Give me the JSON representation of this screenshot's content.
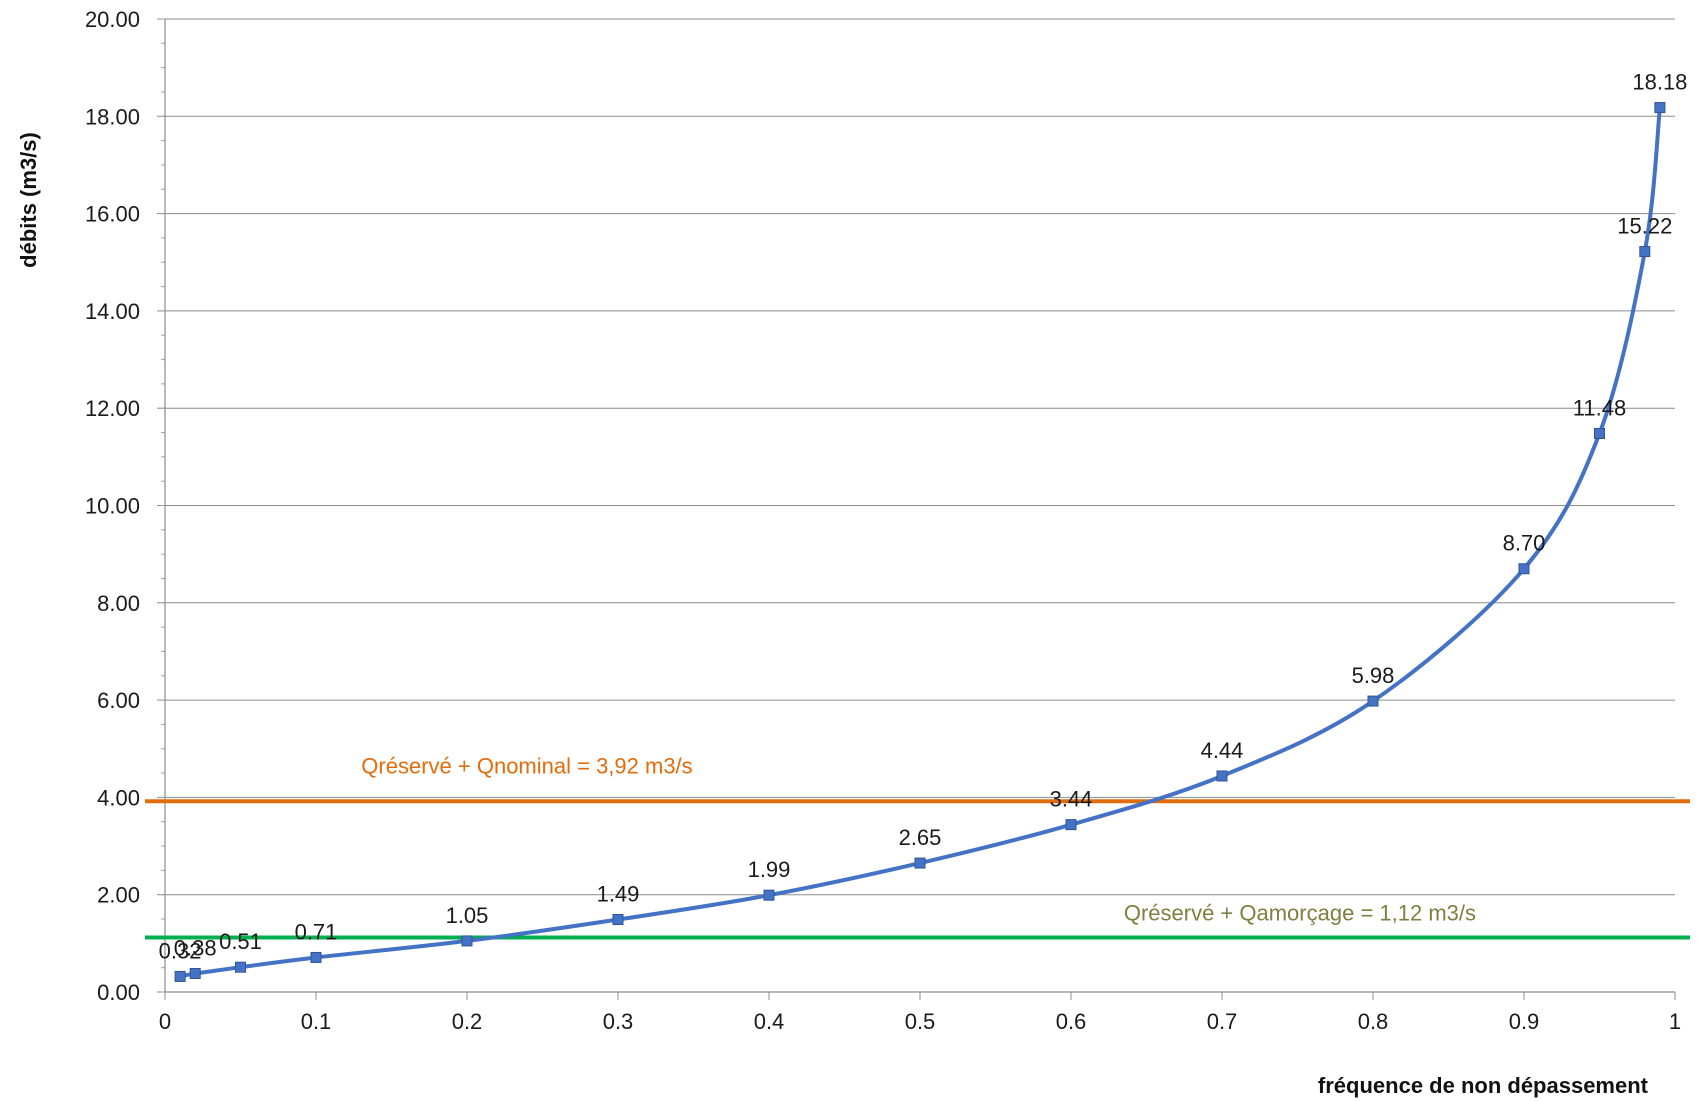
{
  "chart_data": {
    "type": "line",
    "xlabel": "fréquence de non dépassement",
    "ylabel": "débits (m3/s)",
    "xlim": [
      0,
      1
    ],
    "ylim": [
      0,
      20
    ],
    "x_ticks": [
      "0",
      "0.1",
      "0.2",
      "0.3",
      "0.4",
      "0.5",
      "0.6",
      "0.7",
      "0.8",
      "0.9",
      "1"
    ],
    "y_ticks": [
      "0.00",
      "2.00",
      "4.00",
      "6.00",
      "8.00",
      "10.00",
      "12.00",
      "14.00",
      "16.00",
      "18.00",
      "20.00"
    ],
    "grid": "horizontal",
    "series": [
      {
        "color": "#4472c4",
        "x": [
          0.01,
          0.02,
          0.05,
          0.1,
          0.2,
          0.3,
          0.4,
          0.5,
          0.6,
          0.7,
          0.8,
          0.9,
          0.95,
          0.98,
          0.99
        ],
        "y": [
          0.32,
          0.38,
          0.51,
          0.71,
          1.05,
          1.49,
          1.99,
          2.65,
          3.44,
          4.44,
          5.98,
          8.7,
          11.48,
          15.22,
          18.18
        ],
        "labels": [
          "0.32",
          "0.38",
          "0.51",
          "0.71",
          "1.05",
          "1.49",
          "1.99",
          "2.65",
          "3.44",
          "4.44",
          "5.98",
          "8.70",
          "11.48",
          "15.22",
          "18.18"
        ]
      }
    ],
    "reference_lines": [
      {
        "label": "Qréservé + Qnominal = 3,92 m3/s",
        "y": 3.92,
        "color": "#e36c0a"
      },
      {
        "label": "Qréservé + Qamorçage = 1,12 m3/s",
        "y": 1.12,
        "color": "#00b050",
        "label_color": "#7f7f3f"
      }
    ]
  }
}
